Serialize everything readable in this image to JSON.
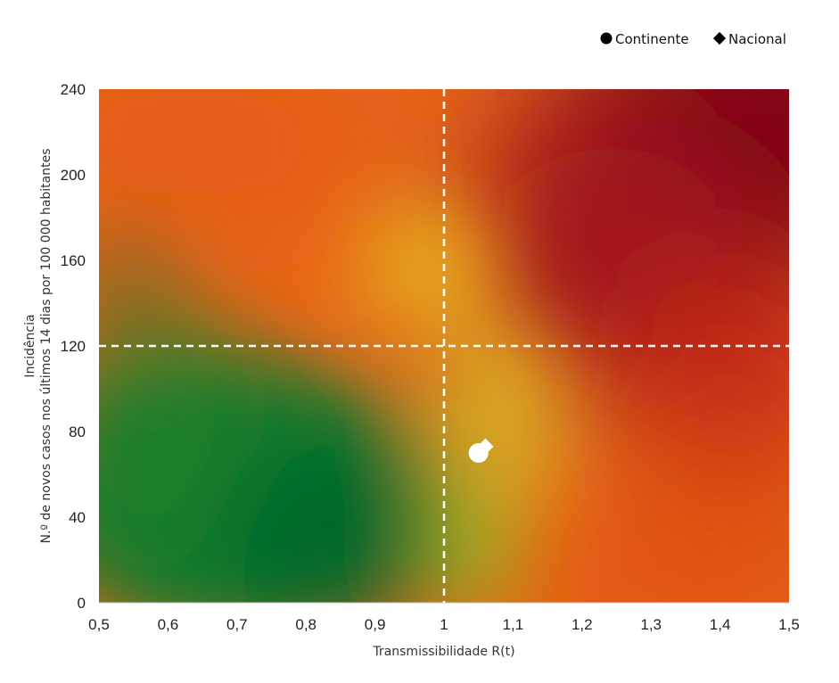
{
  "chart_data": {
    "type": "scatter",
    "xlabel": "Transmissibilidade R(t)",
    "ylabel_line1": "Incidência",
    "ylabel_line2": "N.º de novos casos nos últimos 14 dias por 100 000 habitantes",
    "xlim": [
      0.5,
      1.5
    ],
    "ylim": [
      0,
      240
    ],
    "x_ticks": [
      0.5,
      0.6,
      0.7,
      0.8,
      0.9,
      1.0,
      1.1,
      1.2,
      1.3,
      1.4,
      1.5
    ],
    "x_tick_labels": [
      "0,5",
      "0,6",
      "0,7",
      "0,8",
      "0,9",
      "1",
      "1,1",
      "1,2",
      "1,3",
      "1,4",
      "1,5"
    ],
    "y_ticks": [
      0,
      40,
      80,
      120,
      160,
      200,
      240
    ],
    "y_tick_labels": [
      "0",
      "40",
      "80",
      "120",
      "160",
      "200",
      "240"
    ],
    "reference_lines": {
      "x": 1.0,
      "y": 120
    },
    "series": [
      {
        "name": "Continente",
        "marker": "circle",
        "color": "#ffffff",
        "points": [
          {
            "x": 1.05,
            "y": 70
          }
        ]
      },
      {
        "name": "Nacional",
        "marker": "diamond",
        "color": "#ffffff",
        "points": [
          {
            "x": 1.06,
            "y": 73
          }
        ]
      }
    ],
    "legend": {
      "position": "top-right",
      "marker_color": "#000000"
    },
    "background": "heatmap gradient green (low) to yellow/orange to dark red (high)",
    "colors": {
      "green": "#04692b",
      "yellow": "#e6a81f",
      "orange": "#e8661a",
      "red": "#b81f1a",
      "dark_red": "#6b0016"
    },
    "grid": false
  }
}
